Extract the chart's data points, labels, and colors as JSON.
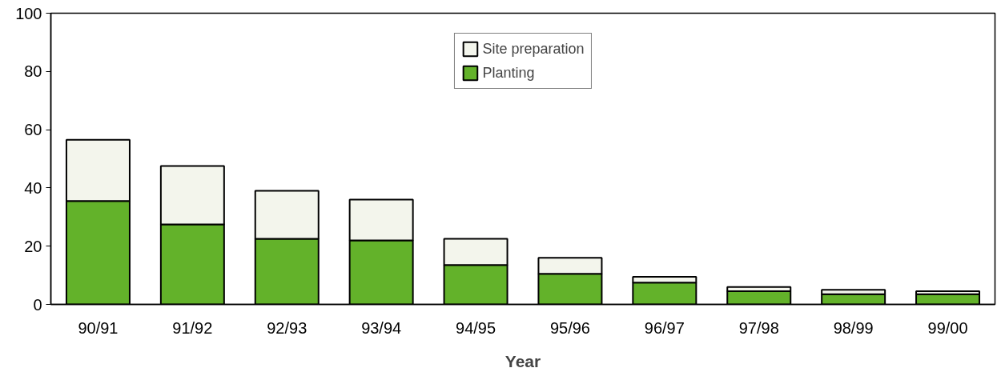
{
  "chart_data": {
    "type": "bar",
    "stacked": true,
    "xlabel": "Year",
    "categories": [
      "90/91",
      "91/92",
      "92/93",
      "93/94",
      "94/95",
      "95/96",
      "96/97",
      "97/98",
      "98/99",
      "99/00"
    ],
    "series": [
      {
        "name": "Planting",
        "color": "#63b22a",
        "values": [
          35.5,
          27.5,
          22.5,
          22,
          13.5,
          10.5,
          7.5,
          4.5,
          3.5,
          3.5
        ]
      },
      {
        "name": "Site preparation",
        "color": "#f3f5ec",
        "values": [
          21,
          20,
          16.5,
          14,
          9,
          5.5,
          2,
          1.5,
          1.5,
          1
        ]
      }
    ],
    "ylim": [
      0,
      100
    ],
    "yticks": [
      0,
      20,
      40,
      60,
      80,
      100
    ],
    "grid": false,
    "legend": "top"
  }
}
